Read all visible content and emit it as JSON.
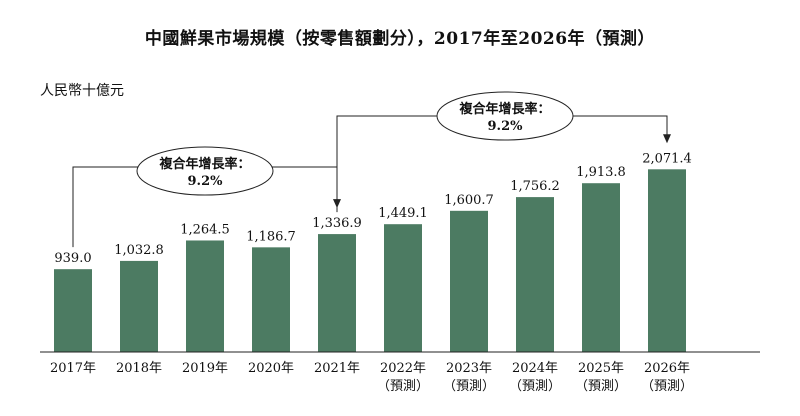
{
  "chart_data": {
    "type": "bar",
    "title": "中國鮮果市場規模（按零售額劃分），2017年至2026年（預測）",
    "ylabel": "人民幣十億元",
    "categories": [
      "2017年",
      "2018年",
      "2019年",
      "2020年",
      "2021年",
      "2022年",
      "2023年",
      "2024年",
      "2025年",
      "2026年"
    ],
    "category_sublabels": [
      "",
      "",
      "",
      "",
      "",
      "（預測）",
      "（預測）",
      "（預測）",
      "（預測）",
      "（預測）"
    ],
    "values": [
      939.0,
      1032.8,
      1264.5,
      1186.7,
      1336.9,
      1449.1,
      1600.7,
      1756.2,
      1913.8,
      2071.4
    ],
    "value_labels": [
      "939.0",
      "1,032.8",
      "1,264.5",
      "1,186.7",
      "1,336.9",
      "1,449.1",
      "1,600.7",
      "1,756.2",
      "1,913.8",
      "2,071.4"
    ],
    "ylim": [
      0,
      2250
    ],
    "grid": false,
    "color": "#4c7b62",
    "annotations": [
      {
        "label": "複合年增長率：",
        "value": "9.2%",
        "from": 0,
        "to": 4
      },
      {
        "label": "複合年增長率：",
        "value": "9.2%",
        "from": 4,
        "to": 9
      }
    ]
  }
}
